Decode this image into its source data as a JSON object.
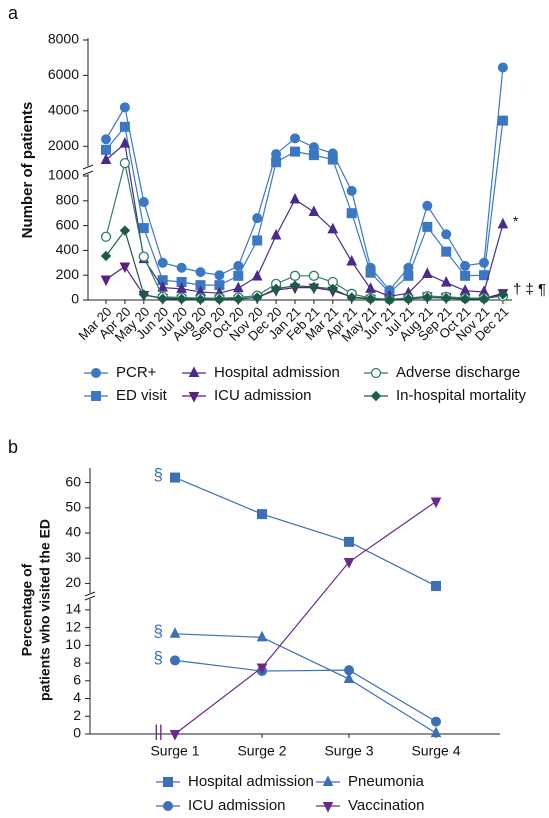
{
  "chart_data": [
    {
      "type": "line",
      "panel_label": "a",
      "ylabel": "Number of patients",
      "categories": [
        "Mar 20",
        "Apr 20",
        "May 20",
        "Jun 20",
        "Jul 20",
        "Aug 20",
        "Sep 20",
        "Oct 20",
        "Nov 20",
        "Dec 20",
        "Jan 21",
        "Feb 21",
        "Mar 21",
        "Apr 21",
        "May 21",
        "Jun 21",
        "Jul 21",
        "Aug 21",
        "Sep 21",
        "Oct 21",
        "Nov 21",
        "Dec 21"
      ],
      "ylim_lower": [
        0,
        1000
      ],
      "ylim_upper": [
        1000,
        8000
      ],
      "yticks": [
        0,
        200,
        400,
        600,
        800,
        1000,
        2000,
        4000,
        6000,
        8000
      ],
      "annotation": "† ‡ ¶",
      "series": [
        {
          "name": "PCR+",
          "color": "#3b78c4",
          "marker": "circle",
          "values": [
            2400,
            4200,
            790,
            300,
            260,
            225,
            200,
            275,
            660,
            1560,
            2450,
            1950,
            1600,
            880,
            260,
            80,
            260,
            760,
            530,
            275,
            300,
            6450
          ]
        },
        {
          "name": "ED visit",
          "color": "#3b78c4",
          "marker": "square",
          "values": [
            1800,
            3100,
            580,
            160,
            145,
            120,
            120,
            195,
            480,
            1100,
            1700,
            1500,
            1250,
            700,
            220,
            60,
            195,
            590,
            390,
            195,
            200,
            3450
          ]
        },
        {
          "name": "Hospital admission",
          "color": "#4a2a8c",
          "marker": "triangle-up",
          "annotation": "*",
          "values": [
            1225,
            2150,
            330,
            100,
            90,
            65,
            55,
            95,
            190,
            520,
            810,
            710,
            570,
            310,
            90,
            30,
            55,
            210,
            140,
            75,
            65,
            610
          ]
        },
        {
          "name": "ICU admission",
          "color": "#5b1f7c",
          "marker": "triangle-down",
          "values": [
            165,
            270,
            40,
            15,
            12,
            10,
            10,
            10,
            20,
            80,
            100,
            100,
            75,
            25,
            10,
            5,
            10,
            30,
            25,
            15,
            12,
            55
          ]
        },
        {
          "name": "Adverse discharge",
          "color": "#2f7d6b",
          "marker": "hollow-circle",
          "values": [
            510,
            1050,
            350,
            25,
            20,
            15,
            15,
            20,
            35,
            130,
            195,
            195,
            145,
            50,
            15,
            5,
            15,
            30,
            25,
            15,
            15,
            30
          ]
        },
        {
          "name": "In-hospital mortality",
          "color": "#1d5a4a",
          "marker": "diamond",
          "values": [
            355,
            560,
            45,
            10,
            8,
            5,
            5,
            8,
            20,
            90,
            115,
            105,
            90,
            20,
            8,
            3,
            8,
            20,
            15,
            8,
            8,
            45
          ]
        }
      ]
    },
    {
      "type": "line",
      "panel_label": "b",
      "ylabel": [
        "Percentage of",
        "patients who visited the ED"
      ],
      "categories": [
        "Surge 1",
        "Surge 2",
        "Surge 3",
        "Surge 4"
      ],
      "ylim_lower": [
        0,
        15
      ],
      "ylim_upper": [
        17,
        65
      ],
      "yticks": [
        0,
        2,
        4,
        6,
        8,
        10,
        12,
        14,
        20,
        30,
        40,
        50,
        60
      ],
      "series": [
        {
          "name": "Hospital admission",
          "color": "#3b6fb6",
          "marker": "square",
          "annotation": "§",
          "values": [
            62,
            47.5,
            36.5,
            19
          ]
        },
        {
          "name": "Pneumonia",
          "color": "#3b6fb6",
          "marker": "triangle-up",
          "annotation": "§",
          "values": [
            11.3,
            10.9,
            6.2,
            0.1
          ]
        },
        {
          "name": "ICU admission",
          "color": "#3b6fb6",
          "marker": "circle",
          "annotation": "§",
          "values": [
            8.3,
            7.1,
            7.2,
            1.4
          ]
        },
        {
          "name": "Vaccination",
          "color": "#6a2a8a",
          "marker": "triangle-down",
          "annotation": "||",
          "values": [
            0,
            7.5,
            28.5,
            52.5
          ]
        }
      ]
    }
  ]
}
